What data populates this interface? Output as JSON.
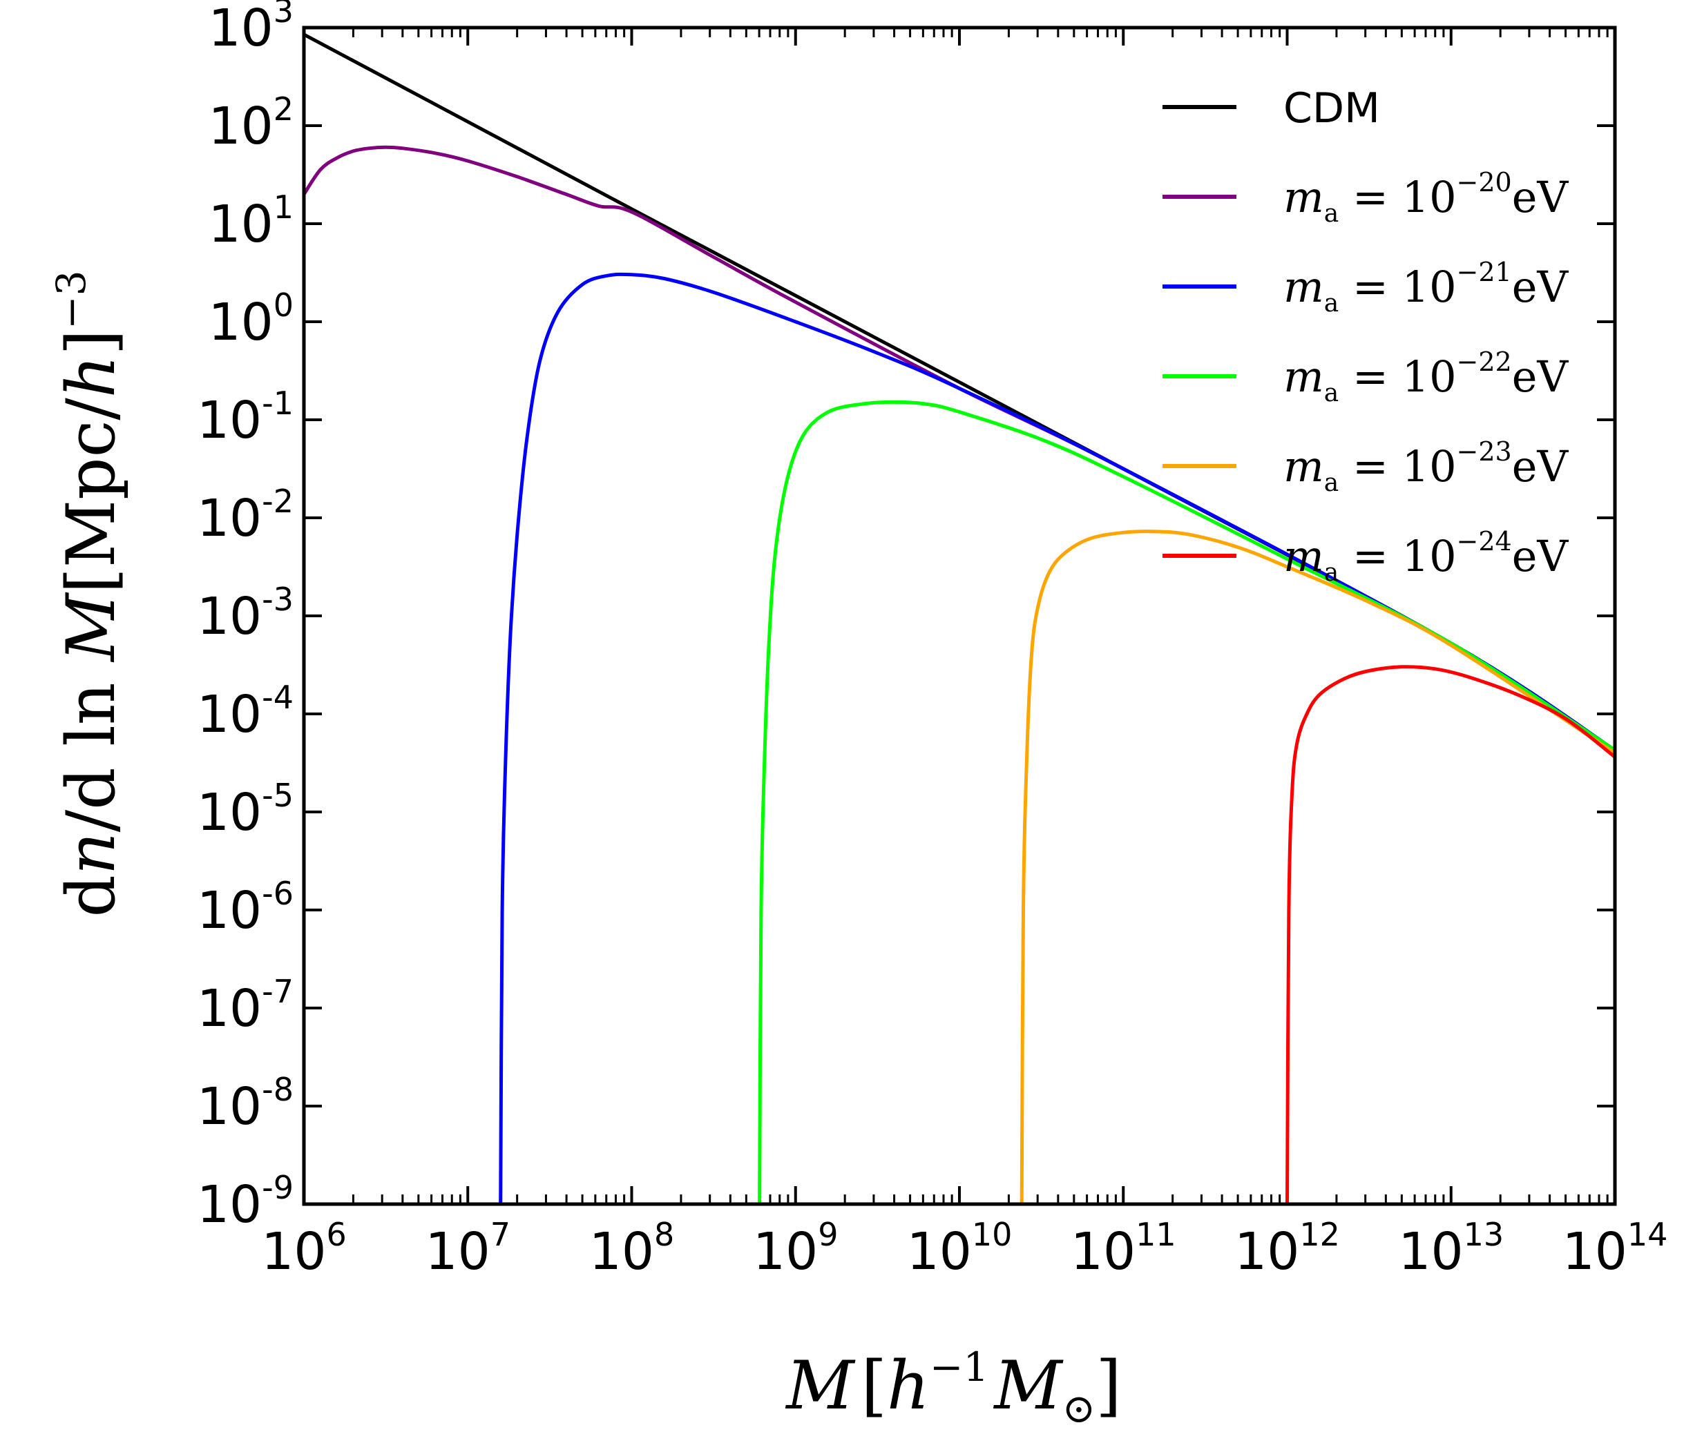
{
  "chart_data": {
    "type": "line",
    "title": "",
    "xscale": "log",
    "yscale": "log",
    "xlim_exp": [
      6,
      14
    ],
    "ylim_exp": [
      -9,
      3
    ],
    "xlabel": {
      "main": "M",
      "bracket_open": "[",
      "h": "h",
      "h_exp": "−1",
      "M2": "M",
      "sun": "⊙",
      "bracket_close": "]"
    },
    "ylabel": {
      "d1": "d",
      "n": "n",
      "slash1": "/",
      "d2": "d",
      "ln": " ln ",
      "M": "M",
      "open": "[",
      "mpc": "Mpc",
      "slash2": "/",
      "h": "h",
      "close": "]",
      "exp": "−3"
    },
    "xticks": [
      {
        "base": "10",
        "exp": "6"
      },
      {
        "base": "10",
        "exp": "7"
      },
      {
        "base": "10",
        "exp": "8"
      },
      {
        "base": "10",
        "exp": "9"
      },
      {
        "base": "10",
        "exp": "10"
      },
      {
        "base": "10",
        "exp": "11"
      },
      {
        "base": "10",
        "exp": "12"
      },
      {
        "base": "10",
        "exp": "13"
      },
      {
        "base": "10",
        "exp": "14"
      }
    ],
    "yticks": [
      {
        "base": "10",
        "exp": "3"
      },
      {
        "base": "10",
        "exp": "2"
      },
      {
        "base": "10",
        "exp": "1"
      },
      {
        "base": "10",
        "exp": "0"
      },
      {
        "base": "10",
        "exp": "-1"
      },
      {
        "base": "10",
        "exp": "-2"
      },
      {
        "base": "10",
        "exp": "-3"
      },
      {
        "base": "10",
        "exp": "-4"
      },
      {
        "base": "10",
        "exp": "-5"
      },
      {
        "base": "10",
        "exp": "-6"
      },
      {
        "base": "10",
        "exp": "-7"
      },
      {
        "base": "10",
        "exp": "-8"
      },
      {
        "base": "10",
        "exp": "-9"
      }
    ],
    "legend": {
      "position": "top-right",
      "cdm_label": "CDM",
      "m": "m",
      "a": "a",
      "eq": " = 10",
      "unit": "eV"
    },
    "series": [
      {
        "name": "CDM",
        "color": "#000000",
        "points": [
          [
            6.0,
            2.93
          ],
          [
            8.0,
            1.15
          ],
          [
            11.0,
            -1.5
          ],
          [
            13.0,
            -3.28
          ],
          [
            14.0,
            -4.37
          ]
        ]
      },
      {
        "name": "m_a = 10^-20 eV",
        "exp": "−20",
        "color": "#800080",
        "points": [
          [
            6.0,
            1.3
          ],
          [
            6.1,
            1.55
          ],
          [
            6.2,
            1.67
          ],
          [
            6.3,
            1.74
          ],
          [
            6.4,
            1.77
          ],
          [
            6.5,
            1.78
          ],
          [
            6.6,
            1.77
          ],
          [
            6.8,
            1.72
          ],
          [
            7.0,
            1.64
          ],
          [
            7.3,
            1.48
          ],
          [
            7.6,
            1.3
          ],
          [
            7.8,
            1.18
          ],
          [
            8.0,
            1.12
          ],
          [
            8.5,
            0.66
          ],
          [
            9.0,
            0.2
          ],
          [
            10.0,
            -0.68
          ],
          [
            11.0,
            -1.5
          ],
          [
            13.0,
            -3.28
          ],
          [
            14.0,
            -4.37
          ]
        ]
      },
      {
        "name": "m_a = 10^-21 eV",
        "exp": "−21",
        "color": "#0000ff",
        "points": [
          [
            7.2,
            -9.0
          ],
          [
            7.21,
            -6.0
          ],
          [
            7.23,
            -4.5
          ],
          [
            7.26,
            -3.2
          ],
          [
            7.3,
            -2.2
          ],
          [
            7.36,
            -1.2
          ],
          [
            7.44,
            -0.4
          ],
          [
            7.55,
            0.1
          ],
          [
            7.7,
            0.38
          ],
          [
            7.85,
            0.47
          ],
          [
            8.0,
            0.48
          ],
          [
            8.2,
            0.44
          ],
          [
            8.5,
            0.3
          ],
          [
            9.0,
            0.0
          ],
          [
            9.5,
            -0.32
          ],
          [
            10.0,
            -0.68
          ],
          [
            11.0,
            -1.5
          ],
          [
            13.0,
            -3.28
          ],
          [
            14.0,
            -4.37
          ]
        ]
      },
      {
        "name": "m_a = 10^-22 eV",
        "exp": "−22",
        "color": "#00ff00",
        "points": [
          [
            8.78,
            -9.0
          ],
          [
            8.79,
            -6.0
          ],
          [
            8.81,
            -4.5
          ],
          [
            8.84,
            -3.2
          ],
          [
            8.88,
            -2.3
          ],
          [
            8.95,
            -1.6
          ],
          [
            9.05,
            -1.15
          ],
          [
            9.2,
            -0.92
          ],
          [
            9.4,
            -0.84
          ],
          [
            9.6,
            -0.82
          ],
          [
            9.8,
            -0.84
          ],
          [
            10.0,
            -0.92
          ],
          [
            10.5,
            -1.2
          ],
          [
            11.0,
            -1.58
          ],
          [
            12.0,
            -2.42
          ],
          [
            13.0,
            -3.28
          ],
          [
            14.0,
            -4.37
          ]
        ]
      },
      {
        "name": "m_a = 10^-23 eV",
        "exp": "−23",
        "color": "#ffa500",
        "points": [
          [
            10.38,
            -9.0
          ],
          [
            10.39,
            -6.0
          ],
          [
            10.41,
            -4.5
          ],
          [
            10.44,
            -3.4
          ],
          [
            10.48,
            -2.9
          ],
          [
            10.55,
            -2.55
          ],
          [
            10.65,
            -2.35
          ],
          [
            10.8,
            -2.21
          ],
          [
            11.0,
            -2.15
          ],
          [
            11.2,
            -2.14
          ],
          [
            11.4,
            -2.17
          ],
          [
            11.7,
            -2.3
          ],
          [
            12.0,
            -2.5
          ],
          [
            12.5,
            -2.86
          ],
          [
            13.0,
            -3.3
          ],
          [
            14.0,
            -4.4
          ]
        ]
      },
      {
        "name": "m_a = 10^-24 eV",
        "exp": "−24",
        "color": "#ff0000",
        "points": [
          [
            12.0,
            -9.0
          ],
          [
            12.01,
            -6.0
          ],
          [
            12.03,
            -4.8
          ],
          [
            12.06,
            -4.3
          ],
          [
            12.12,
            -4.0
          ],
          [
            12.2,
            -3.8
          ],
          [
            12.35,
            -3.64
          ],
          [
            12.5,
            -3.56
          ],
          [
            12.7,
            -3.52
          ],
          [
            12.9,
            -3.54
          ],
          [
            13.1,
            -3.62
          ],
          [
            13.4,
            -3.8
          ],
          [
            13.7,
            -4.05
          ],
          [
            14.0,
            -4.44
          ]
        ]
      }
    ]
  }
}
